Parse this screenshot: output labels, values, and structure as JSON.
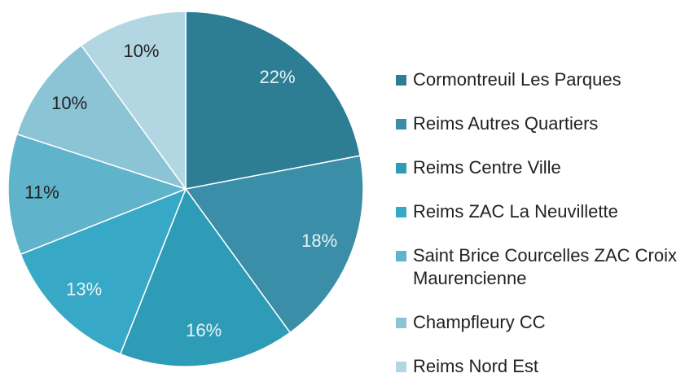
{
  "chart_data": {
    "type": "pie",
    "categories": [
      "Cormontreuil Les Parques",
      "Reims Autres Quartiers",
      "Reims Centre Ville",
      "Reims ZAC La Neuvillette",
      "Saint Brice Courcelles ZAC Croix Maurencienne",
      "Champfleury CC",
      "Reims Nord Est"
    ],
    "values": [
      22,
      18,
      16,
      13,
      11,
      10,
      10
    ],
    "value_labels": [
      "22%",
      "18%",
      "16%",
      "13%",
      "11%",
      "10%",
      "10%"
    ],
    "colors": [
      "#2d7d94",
      "#3a8ea7",
      "#2f9cb7",
      "#37a8c5",
      "#5fb3cb",
      "#8bc4d5",
      "#b2d7e3"
    ],
    "legend": "right"
  }
}
